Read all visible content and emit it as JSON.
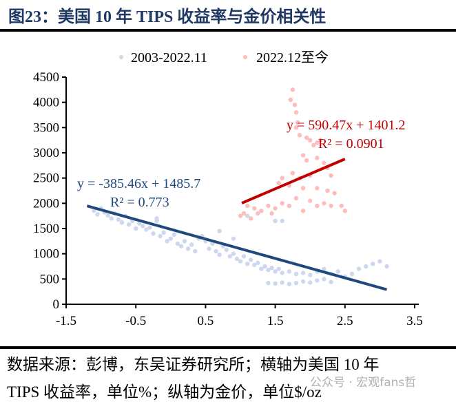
{
  "title": "图23：美国 10 年 TIPS 收益率与金价相关性",
  "source_line1": "数据来源：彭博，东吴证券研究所；横轴为美国 10 年",
  "source_line2": "TIPS 收益率，单位%；纵轴为金价，单位$/oz",
  "watermark": "公众号 · 宏观fans哲",
  "chart_data": {
    "type": "scatter",
    "xlim": [
      -1.5,
      3.5
    ],
    "ylim": [
      0,
      4500
    ],
    "xticks": [
      -1.5,
      -0.5,
      0.5,
      1.5,
      2.5,
      3.5
    ],
    "yticks": [
      0,
      500,
      1000,
      1500,
      2000,
      2500,
      3000,
      3500,
      4000,
      4500
    ],
    "grid": false,
    "legend_position": "top",
    "series": [
      {
        "name": "2003-2022.11",
        "color": "#cdd8ee",
        "trendline": {
          "slope": -385.46,
          "intercept": 1485.7,
          "x_range": [
            -1.2,
            3.1
          ],
          "color": "#1f497d",
          "equation": "y = -385.46x + 1485.7",
          "r2": "R² = 0.773"
        },
        "points": [
          [
            -1.1,
            1850
          ],
          [
            -1.05,
            1780
          ],
          [
            -1.0,
            1900
          ],
          [
            -0.95,
            1820
          ],
          [
            -0.9,
            1760
          ],
          [
            -0.85,
            1700
          ],
          [
            -0.8,
            1800
          ],
          [
            -0.75,
            1680
          ],
          [
            -0.7,
            1620
          ],
          [
            -0.65,
            1750
          ],
          [
            -0.6,
            1580
          ],
          [
            -0.55,
            1650
          ],
          [
            -0.5,
            1500
          ],
          [
            -0.45,
            1600
          ],
          [
            -0.4,
            1550
          ],
          [
            -0.35,
            1480
          ],
          [
            -0.3,
            1520
          ],
          [
            -0.25,
            1400
          ],
          [
            -0.2,
            1700
          ],
          [
            -0.15,
            1350
          ],
          [
            -0.1,
            1420
          ],
          [
            -0.05,
            1250
          ],
          [
            0.0,
            1300
          ],
          [
            0.05,
            1380
          ],
          [
            0.1,
            1200
          ],
          [
            0.15,
            1150
          ],
          [
            0.2,
            1250
          ],
          [
            0.25,
            1100
          ],
          [
            0.3,
            1180
          ],
          [
            0.35,
            1050
          ],
          [
            0.4,
            1300
          ],
          [
            0.45,
            1350
          ],
          [
            0.5,
            1250
          ],
          [
            0.55,
            1100
          ],
          [
            0.6,
            1200
          ],
          [
            0.65,
            1050
          ],
          [
            0.7,
            980
          ],
          [
            0.75,
            1150
          ],
          [
            0.8,
            1080
          ],
          [
            0.85,
            950
          ],
          [
            0.9,
            1000
          ],
          [
            0.95,
            900
          ],
          [
            1.0,
            850
          ],
          [
            1.05,
            950
          ],
          [
            1.1,
            800
          ],
          [
            1.15,
            880
          ],
          [
            1.2,
            780
          ],
          [
            1.25,
            820
          ],
          [
            1.3,
            700
          ],
          [
            1.35,
            750
          ],
          [
            1.4,
            680
          ],
          [
            1.45,
            720
          ],
          [
            1.5,
            650
          ],
          [
            1.55,
            700
          ],
          [
            1.6,
            620
          ],
          [
            1.7,
            650
          ],
          [
            1.8,
            600
          ],
          [
            1.9,
            620
          ],
          [
            2.0,
            580
          ],
          [
            2.1,
            650
          ],
          [
            2.2,
            700
          ],
          [
            2.3,
            600
          ],
          [
            2.4,
            650
          ],
          [
            2.5,
            550
          ],
          [
            2.6,
            600
          ],
          [
            2.7,
            700
          ],
          [
            2.8,
            750
          ],
          [
            2.9,
            800
          ],
          [
            3.0,
            850
          ],
          [
            3.1,
            750
          ],
          [
            1.4,
            420
          ],
          [
            1.5,
            410
          ],
          [
            1.6,
            430
          ],
          [
            1.7,
            400
          ],
          [
            1.8,
            420
          ],
          [
            1.9,
            450
          ],
          [
            2.0,
            430
          ],
          [
            2.1,
            470
          ],
          [
            2.2,
            500
          ],
          [
            2.3,
            440
          ],
          [
            1.1,
            1750
          ],
          [
            1.5,
            1650
          ],
          [
            1.6,
            1650
          ],
          [
            0.7,
            1450
          ],
          [
            0.9,
            1300
          ],
          [
            -0.2,
            1650
          ]
        ]
      },
      {
        "name": "2022.12至今",
        "color": "#ffbcbc",
        "trendline": {
          "slope": 590.47,
          "intercept": 1401.2,
          "x_range": [
            1.02,
            2.5
          ],
          "color": "#c00000",
          "equation": "y = 590.47x + 1401.2",
          "r2": "R² = 0.0901"
        },
        "points": [
          [
            1.75,
            4250
          ],
          [
            1.72,
            4050
          ],
          [
            1.78,
            3950
          ],
          [
            1.8,
            3800
          ],
          [
            1.82,
            3600
          ],
          [
            1.8,
            3500
          ],
          [
            1.85,
            3350
          ],
          [
            1.95,
            3300
          ],
          [
            2.0,
            3250
          ],
          [
            2.1,
            3200
          ],
          [
            2.05,
            3150
          ],
          [
            2.15,
            3250
          ],
          [
            1.9,
            2950
          ],
          [
            1.95,
            2850
          ],
          [
            2.1,
            2900
          ],
          [
            2.2,
            2800
          ],
          [
            2.25,
            2700
          ],
          [
            1.6,
            2500
          ],
          [
            1.75,
            2600
          ],
          [
            1.85,
            2500
          ],
          [
            2.0,
            2550
          ],
          [
            2.3,
            2550
          ],
          [
            1.55,
            2400
          ],
          [
            1.7,
            2350
          ],
          [
            1.9,
            2300
          ],
          [
            2.1,
            2300
          ],
          [
            2.25,
            2250
          ],
          [
            2.35,
            2200
          ],
          [
            1.8,
            2100
          ],
          [
            2.0,
            2050
          ],
          [
            2.2,
            2000
          ],
          [
            1.1,
            1950
          ],
          [
            1.2,
            1900
          ],
          [
            1.3,
            1850
          ],
          [
            1.4,
            1950
          ],
          [
            1.5,
            1900
          ],
          [
            1.6,
            2000
          ],
          [
            1.7,
            1950
          ],
          [
            1.9,
            1850
          ],
          [
            2.1,
            1950
          ],
          [
            2.3,
            1950
          ],
          [
            2.45,
            1950
          ],
          [
            1.05,
            1800
          ],
          [
            1.25,
            1800
          ],
          [
            1.45,
            1800
          ],
          [
            2.5,
            1850
          ],
          [
            1.0,
            1750
          ],
          [
            1.15,
            1700
          ]
        ]
      }
    ]
  }
}
